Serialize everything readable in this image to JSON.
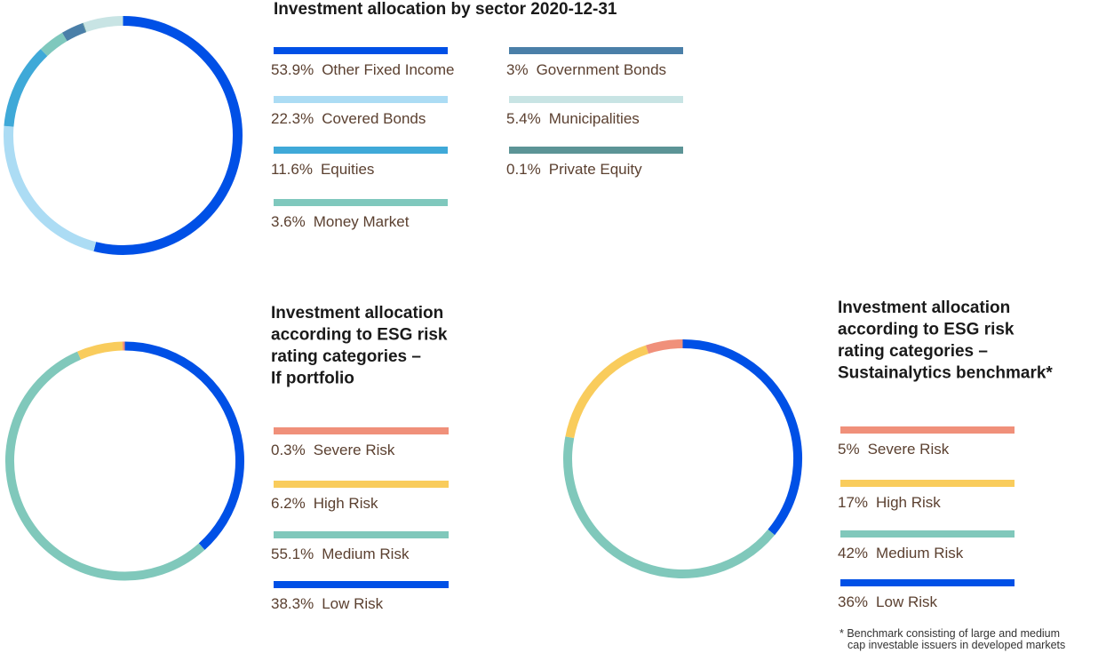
{
  "chart_data": [
    {
      "type": "donut",
      "title": [
        "Investment allocation by sector 2020-12-31"
      ],
      "categories": [
        "Other Fixed Income",
        "Covered Bonds",
        "Equities",
        "Money Market",
        "Government Bonds",
        "Municipalities",
        "Private Equity"
      ],
      "values": [
        53.9,
        22.3,
        11.6,
        3.6,
        3,
        5.4,
        0.1
      ],
      "value_labels": [
        "53.9%",
        "22.3%",
        "11.6%",
        "3.6%",
        "3%",
        "5.4%",
        "0.1%"
      ],
      "colors": [
        "#0050e6",
        "#acdcf4",
        "#3fa9d8",
        "#7fc8bd",
        "#4a7fa8",
        "#c8e4e4",
        "#5c9496"
      ]
    },
    {
      "type": "donut",
      "title": [
        "Investment allocation",
        "according to ESG risk",
        "rating categories –",
        "If portfolio"
      ],
      "categories": [
        "Severe Risk",
        "High Risk",
        "Medium Risk",
        "Low Risk"
      ],
      "values": [
        0.3,
        6.2,
        55.1,
        38.3
      ],
      "value_labels": [
        "0.3%",
        "6.2%",
        "55.1%",
        "38.3%"
      ],
      "colors": [
        "#f0907a",
        "#f9cc5c",
        "#80c8bb",
        "#0050e6"
      ]
    },
    {
      "type": "donut",
      "title": [
        "Investment allocation",
        "according to ESG risk",
        "rating categories –",
        "Sustainalytics benchmark*"
      ],
      "categories": [
        "Severe Risk",
        "High Risk",
        "Medium Risk",
        "Low Risk"
      ],
      "values": [
        5,
        17,
        42,
        36
      ],
      "value_labels": [
        "5%",
        "17%",
        "42%",
        "36%"
      ],
      "colors": [
        "#f0907a",
        "#f9cc5c",
        "#80c8bb",
        "#0050e6"
      ],
      "note": [
        "* Benchmark consisting of large and medium",
        "cap investable issuers in developed markets"
      ]
    }
  ]
}
